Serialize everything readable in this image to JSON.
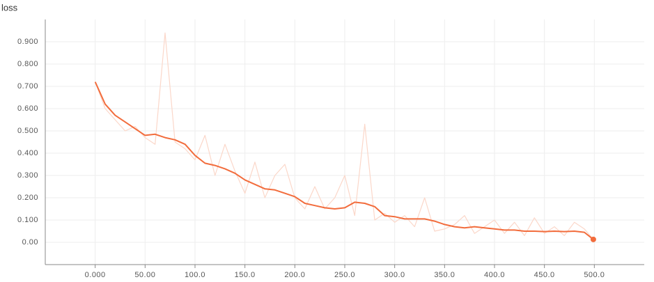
{
  "chart_data": {
    "type": "line",
    "title": "loss",
    "x": [
      0,
      10,
      20,
      30,
      40,
      50,
      60,
      70,
      80,
      90,
      100,
      110,
      120,
      130,
      140,
      150,
      160,
      170,
      180,
      190,
      200,
      210,
      220,
      230,
      240,
      250,
      260,
      270,
      280,
      290,
      300,
      310,
      320,
      330,
      340,
      350,
      360,
      370,
      380,
      390,
      400,
      410,
      420,
      430,
      440,
      450,
      460,
      470,
      480,
      490,
      499
    ],
    "series": [
      {
        "color": "#fbd7c9",
        "values": [
          0.72,
          0.6,
          0.55,
          0.5,
          0.52,
          0.47,
          0.44,
          0.94,
          0.45,
          0.42,
          0.37,
          0.48,
          0.3,
          0.44,
          0.32,
          0.22,
          0.36,
          0.2,
          0.3,
          0.35,
          0.2,
          0.15,
          0.25,
          0.15,
          0.2,
          0.3,
          0.12,
          0.53,
          0.1,
          0.13,
          0.09,
          0.12,
          0.07,
          0.2,
          0.05,
          0.06,
          0.08,
          0.12,
          0.04,
          0.07,
          0.1,
          0.04,
          0.09,
          0.03,
          0.11,
          0.04,
          0.07,
          0.03,
          0.09,
          0.06,
          0.013
        ]
      },
      {
        "color": "#f26c3c",
        "values": [
          0.72,
          0.62,
          0.57,
          0.54,
          0.51,
          0.48,
          0.485,
          0.47,
          0.46,
          0.44,
          0.39,
          0.355,
          0.345,
          0.33,
          0.31,
          0.28,
          0.26,
          0.24,
          0.235,
          0.22,
          0.205,
          0.175,
          0.165,
          0.155,
          0.15,
          0.155,
          0.18,
          0.175,
          0.16,
          0.12,
          0.115,
          0.105,
          0.105,
          0.105,
          0.095,
          0.08,
          0.07,
          0.065,
          0.07,
          0.065,
          0.06,
          0.055,
          0.055,
          0.05,
          0.05,
          0.048,
          0.05,
          0.048,
          0.05,
          0.045,
          0.013
        ]
      }
    ],
    "xlim": [
      -50,
      550
    ],
    "xticks": [
      {
        "value": 0,
        "label": "0.000"
      },
      {
        "value": 50,
        "label": "50.00"
      },
      {
        "value": 100,
        "label": "100.0"
      },
      {
        "value": 150,
        "label": "150.0"
      },
      {
        "value": 200,
        "label": "200.0"
      },
      {
        "value": 250,
        "label": "250.0"
      },
      {
        "value": 300,
        "label": "300.0"
      },
      {
        "value": 350,
        "label": "350.0"
      },
      {
        "value": 400,
        "label": "400.0"
      },
      {
        "value": 450,
        "label": "450.0"
      },
      {
        "value": 500,
        "label": "500.0"
      }
    ],
    "ylim": [
      -0.1,
      1.0
    ],
    "yticks": [
      {
        "value": 0,
        "label": "0.00"
      },
      {
        "value": 0.1,
        "label": "0.100"
      },
      {
        "value": 0.2,
        "label": "0.200"
      },
      {
        "value": 0.3,
        "label": "0.300"
      },
      {
        "value": 0.4,
        "label": "0.400"
      },
      {
        "value": 0.5,
        "label": "0.500"
      },
      {
        "value": 0.6,
        "label": "0.600"
      },
      {
        "value": 0.7,
        "label": "0.700"
      },
      {
        "value": 0.8,
        "label": "0.800"
      },
      {
        "value": 0.9,
        "label": "0.900"
      }
    ],
    "grid": true
  }
}
